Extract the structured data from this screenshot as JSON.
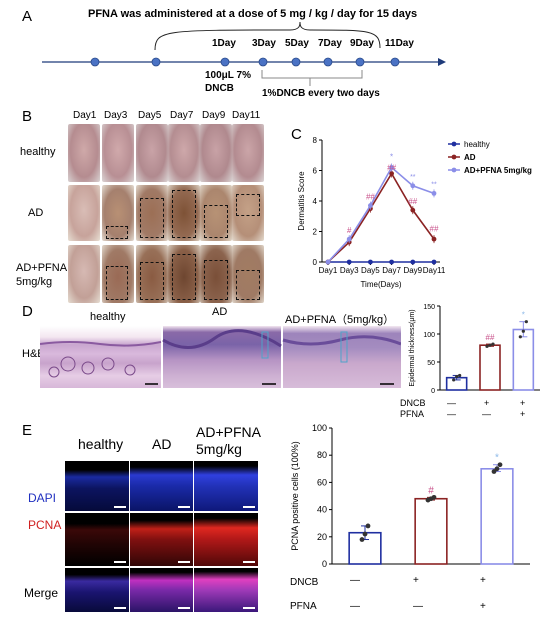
{
  "panelA": {
    "label": "A",
    "title": "PFNA was administered at a dose of 5 mg / kg / day for 15 days",
    "days": [
      "1Day",
      "3Day",
      "5Day",
      "7Day",
      "9Day",
      "11Day"
    ],
    "dncb_first": "100μL 7%",
    "dncb_first2": "DNCB",
    "dncb_repeat": "1%DNCB every two days"
  },
  "panelB": {
    "label": "B",
    "columns": [
      "Day1",
      "Day3",
      "Day5",
      "Day7",
      "Day9",
      "Day11"
    ],
    "rows": [
      "healthy",
      "AD",
      "AD+PFNA",
      "5mg/kg"
    ]
  },
  "panelC": {
    "label": "C",
    "legend": [
      "healthy",
      "AD",
      "AD+PFNA 5mg/kg"
    ],
    "sig_hash": "#",
    "sig_hash2": "##",
    "sig_star": "*",
    "sig_star2": "**"
  },
  "panelD": {
    "label": "D",
    "cols": [
      "healthy",
      "AD",
      "AD+PFNA（5mg/kg）"
    ],
    "row": "H&E",
    "treat_rows": [
      "DNCB",
      "PFNA"
    ],
    "treat_dncb": [
      "—",
      "+",
      "+"
    ],
    "treat_pfna": [
      "—",
      "—",
      "+"
    ],
    "sig": [
      "##",
      "*"
    ]
  },
  "panelE": {
    "label": "E",
    "cols": [
      "healthy",
      "AD",
      "AD+PFNA",
      "5mg/kg"
    ],
    "rows": [
      "DAPI",
      "PCNA",
      "Merge"
    ],
    "treat_rows": [
      "DNCB",
      "PFNA"
    ],
    "treat_dncb": [
      "—",
      "+",
      "+"
    ],
    "treat_pfna": [
      "—",
      "—",
      "+"
    ],
    "sig": [
      "#",
      "*"
    ]
  },
  "chart_data": [
    {
      "type": "line",
      "title": "",
      "xlabel": "Time(Days)",
      "ylabel": "Dermatitis Score",
      "x": [
        "Day1",
        "Day3",
        "Day5",
        "Day7",
        "Day9",
        "Day11"
      ],
      "ylim": [
        0,
        8
      ],
      "yticks": [
        0,
        2,
        4,
        6,
        8
      ],
      "legend_position": "top-right",
      "series": [
        {
          "name": "healthy",
          "values": [
            0,
            0,
            0,
            0,
            0,
            0
          ],
          "color": "#1f2fa0"
        },
        {
          "name": "AD",
          "values": [
            0,
            1.3,
            3.5,
            5.8,
            3.4,
            1.5
          ],
          "color": "#8b2323"
        },
        {
          "name": "AD+PFNA 5mg/kg",
          "values": [
            0,
            1.5,
            3.7,
            6.2,
            5.0,
            4.5
          ],
          "color": "#8b8ee8"
        }
      ]
    },
    {
      "type": "bar",
      "title": "",
      "ylabel": "Epidermal thickness(μm)",
      "categories": [
        "healthy",
        "AD",
        "AD+PFNA"
      ],
      "values": [
        22,
        80,
        108
      ],
      "ylim": [
        0,
        150
      ],
      "yticks": [
        0,
        50,
        100,
        150
      ],
      "points": [
        [
          18,
          24,
          26
        ],
        [
          78,
          80,
          82
        ],
        [
          95,
          105,
          122
        ]
      ],
      "colors": [
        "#1f2fa0",
        "#8b2323",
        "#8b8ee8"
      ]
    },
    {
      "type": "bar",
      "title": "",
      "ylabel": "PCNA positive cells (100%)",
      "categories": [
        "healthy",
        "AD",
        "AD+PFNA"
      ],
      "values": [
        23,
        48,
        70
      ],
      "ylim": [
        0,
        100
      ],
      "yticks": [
        0,
        20,
        40,
        60,
        80,
        100
      ],
      "points": [
        [
          18,
          22,
          28
        ],
        [
          47,
          48,
          49
        ],
        [
          68,
          70,
          73
        ]
      ],
      "colors": [
        "#1f2fa0",
        "#8b2323",
        "#8b8ee8"
      ]
    }
  ]
}
